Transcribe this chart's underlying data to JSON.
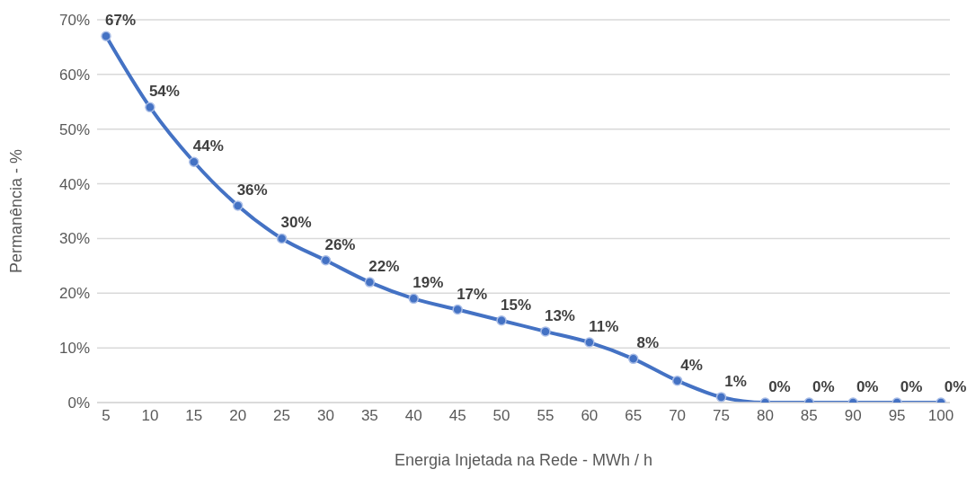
{
  "chart_data": {
    "type": "line",
    "xlabel": "Energia Injetada na Rede - MWh / h",
    "ylabel": "Permanência - %",
    "categories": [
      "5",
      "10",
      "15",
      "20",
      "25",
      "30",
      "35",
      "40",
      "45",
      "50",
      "55",
      "60",
      "65",
      "70",
      "75",
      "80",
      "85",
      "90",
      "95",
      "100"
    ],
    "series": [
      {
        "color": "#4472c4",
        "values": [
          67,
          54,
          44,
          36,
          30,
          26,
          22,
          19,
          17,
          15,
          13,
          11,
          8,
          4,
          1,
          0,
          0,
          0,
          0,
          0
        ],
        "value_labels": [
          "67%",
          "54%",
          "44%",
          "36%",
          "30%",
          "26%",
          "22%",
          "19%",
          "17%",
          "15%",
          "13%",
          "11%",
          "8%",
          "4%",
          "1%",
          "0%",
          "0%",
          "0%",
          "0%",
          "0%"
        ]
      }
    ],
    "ylim": [
      0,
      70
    ],
    "yticks": [
      {
        "value": 0,
        "label": "0%"
      },
      {
        "value": 10,
        "label": "10%"
      },
      {
        "value": 20,
        "label": "20%"
      },
      {
        "value": 30,
        "label": "30%"
      },
      {
        "value": 40,
        "label": "40%"
      },
      {
        "value": 50,
        "label": "50%"
      },
      {
        "value": 60,
        "label": "60%"
      },
      {
        "value": 70,
        "label": "70%"
      }
    ],
    "grid": "y",
    "marker": "circle",
    "line_style": "solid",
    "legend": false
  }
}
